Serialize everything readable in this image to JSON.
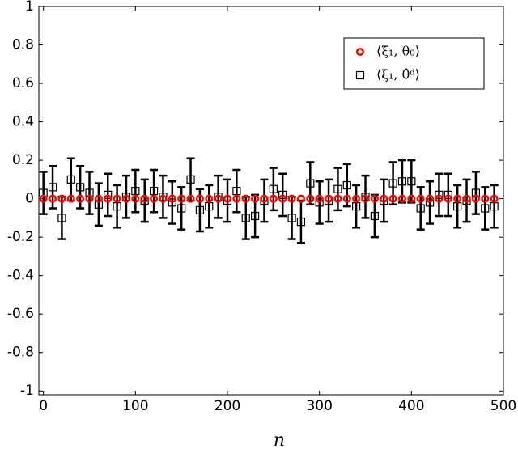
{
  "chart_data": {
    "type": "errorbar-scatter",
    "x_label": "n",
    "x": [
      0,
      10,
      20,
      30,
      40,
      50,
      60,
      70,
      80,
      90,
      100,
      110,
      120,
      130,
      140,
      150,
      160,
      170,
      180,
      190,
      200,
      210,
      220,
      230,
      240,
      250,
      260,
      270,
      280,
      290,
      300,
      310,
      320,
      330,
      340,
      350,
      360,
      370,
      380,
      390,
      400,
      410,
      420,
      430,
      440,
      450,
      460,
      470,
      480,
      490
    ],
    "series": [
      {
        "name": "⟨ξ₁, θ₀⟩",
        "color": "#ff0000",
        "marker": "circle",
        "values": [
          0,
          0,
          0,
          0,
          0,
          0,
          0,
          0,
          0,
          0,
          0,
          0,
          0,
          0,
          0,
          0,
          0,
          0,
          0,
          0,
          0,
          0,
          0,
          0,
          0,
          0,
          0,
          0,
          0,
          0,
          0,
          0,
          0,
          0,
          0,
          0,
          0,
          0,
          0,
          0,
          0,
          0,
          0,
          0,
          0,
          0,
          0,
          0,
          0,
          0
        ]
      },
      {
        "name": "⟨ξ₁, θ̂ᵈ⟩",
        "color": "#000000",
        "marker": "square",
        "values": [
          0.03,
          0.06,
          -0.1,
          0.1,
          0.06,
          0.03,
          -0.03,
          0.02,
          -0.04,
          0.01,
          0.04,
          -0.01,
          0.04,
          0.01,
          -0.02,
          -0.05,
          0.1,
          -0.06,
          -0.04,
          0.01,
          -0.01,
          0.04,
          -0.1,
          -0.09,
          -0.01,
          0.05,
          0.02,
          -0.1,
          -0.12,
          0.08,
          -0.02,
          -0.01,
          0.05,
          0.07,
          -0.04,
          0.01,
          -0.09,
          -0.01,
          0.08,
          0.09,
          0.09,
          -0.05,
          -0.02,
          0.02,
          0.02,
          -0.04,
          -0.01,
          0.03,
          -0.05,
          -0.04
        ],
        "errors": [
          0.11,
          0.11,
          0.11,
          0.11,
          0.11,
          0.11,
          0.11,
          0.11,
          0.11,
          0.11,
          0.11,
          0.11,
          0.11,
          0.11,
          0.11,
          0.11,
          0.11,
          0.11,
          0.11,
          0.11,
          0.11,
          0.11,
          0.11,
          0.11,
          0.11,
          0.11,
          0.11,
          0.11,
          0.11,
          0.11,
          0.11,
          0.11,
          0.11,
          0.11,
          0.11,
          0.11,
          0.11,
          0.11,
          0.11,
          0.11,
          0.11,
          0.11,
          0.11,
          0.11,
          0.11,
          0.11,
          0.11,
          0.11,
          0.11,
          0.11
        ]
      }
    ],
    "xlim": [
      -5,
      500
    ],
    "ylim": [
      -1.02,
      1
    ],
    "xticks": [
      0,
      100,
      200,
      300,
      400,
      500
    ],
    "yticks": [
      -1,
      -0.8,
      -0.6,
      -0.4,
      -0.2,
      0,
      0.2,
      0.4,
      0.6,
      0.8,
      1
    ],
    "legend": "northeast"
  }
}
